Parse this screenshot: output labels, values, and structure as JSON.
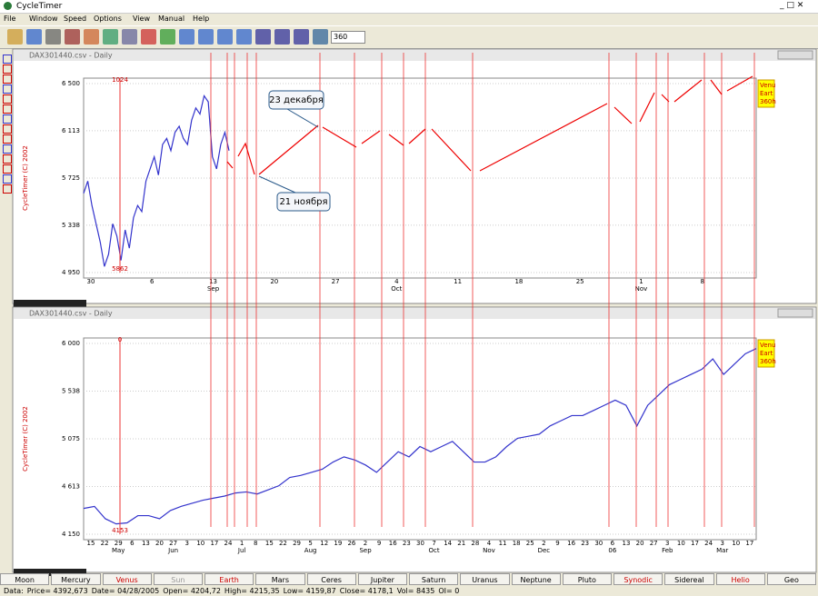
{
  "app_title": "CycleTimer",
  "menu": [
    "File",
    "Window",
    "Speed",
    "Options",
    "View",
    "Manual",
    "Help"
  ],
  "toolbar_field": "360",
  "top_window": {
    "title": "DAX301440.csv - Daily",
    "copyright": "CycleTimer (C) 2002",
    "marker_top": "1024",
    "marker_bottom": "5862",
    "callouts": [
      "23 декабря",
      "21 ноября"
    ],
    "side_label": [
      "Venu",
      "Eart",
      "360h"
    ],
    "ylim": [
      4950,
      6500
    ],
    "yticks": [
      {
        "value": 6500,
        "label": "6 500"
      },
      {
        "value": 6113,
        "label": "6 113"
      },
      {
        "value": 5725,
        "label": "5 725"
      },
      {
        "value": 5338,
        "label": "5 338"
      },
      {
        "value": 4950,
        "label": "4 950"
      }
    ],
    "x_labels": [
      {
        "day": "30"
      },
      {
        "day": "6"
      },
      {
        "day": "13",
        "month": "Sep"
      },
      {
        "day": "20"
      },
      {
        "day": "27"
      },
      {
        "day": "4",
        "month": "Oct"
      },
      {
        "day": "11"
      },
      {
        "day": "18"
      },
      {
        "day": "25"
      },
      {
        "day": "1",
        "month": "Nov"
      },
      {
        "day": "8"
      }
    ],
    "color": "#3333cc",
    "values": [
      5600,
      5700,
      5500,
      5350,
      5200,
      5000,
      5100,
      5350,
      5250,
      5050,
      5300,
      5150,
      5400,
      5500,
      5450,
      5700,
      5800,
      5900,
      5750,
      6000,
      6050,
      5950,
      6100,
      6150,
      6050,
      6000,
      6200,
      6300,
      6250,
      6400,
      6350,
      5900,
      5800,
      6000,
      6100,
      5950
    ]
  },
  "bottom_window": {
    "title": "DAX301440.csv - Daily",
    "copyright": "CycleTimer (C) 2002",
    "marker_top": "0",
    "marker_bottom": "4153",
    "side_label": [
      "Venu",
      "Eart",
      "360h"
    ],
    "ylim": [
      4150,
      6000
    ],
    "yticks": [
      {
        "value": 6000,
        "label": "6 000"
      },
      {
        "value": 5538,
        "label": "5 538"
      },
      {
        "value": 5075,
        "label": "5 075"
      },
      {
        "value": 4613,
        "label": "4 613"
      },
      {
        "value": 4150,
        "label": "4 150"
      }
    ],
    "x_labels": [
      {
        "day": "15"
      },
      {
        "day": "22"
      },
      {
        "day": "29",
        "month": "May"
      },
      {
        "day": "6"
      },
      {
        "day": "13"
      },
      {
        "day": "20"
      },
      {
        "day": "27",
        "month": "Jun"
      },
      {
        "day": "3"
      },
      {
        "day": "10"
      },
      {
        "day": "17"
      },
      {
        "day": "24"
      },
      {
        "day": "1",
        "month": "Jul"
      },
      {
        "day": "8"
      },
      {
        "day": "15"
      },
      {
        "day": "22"
      },
      {
        "day": "29"
      },
      {
        "day": "5",
        "month": "Aug"
      },
      {
        "day": "12"
      },
      {
        "day": "19"
      },
      {
        "day": "26"
      },
      {
        "day": "2",
        "month": "Sep"
      },
      {
        "day": "9"
      },
      {
        "day": "16"
      },
      {
        "day": "23"
      },
      {
        "day": "30"
      },
      {
        "day": "7",
        "month": "Oct"
      },
      {
        "day": "14"
      },
      {
        "day": "21"
      },
      {
        "day": "28"
      },
      {
        "day": "4",
        "month": "Nov"
      },
      {
        "day": "11"
      },
      {
        "day": "18"
      },
      {
        "day": "25"
      },
      {
        "day": "2",
        "month": "Dec"
      },
      {
        "day": "9"
      },
      {
        "day": "16"
      },
      {
        "day": "23"
      },
      {
        "day": "30"
      },
      {
        "day": "6",
        "month": "06"
      },
      {
        "day": "13"
      },
      {
        "day": "20"
      },
      {
        "day": "27"
      },
      {
        "day": "3",
        "month": "Feb"
      },
      {
        "day": "10"
      },
      {
        "day": "17"
      },
      {
        "day": "24"
      },
      {
        "day": "3",
        "month": "Mar"
      },
      {
        "day": "10"
      },
      {
        "day": "17"
      }
    ],
    "color": "#3333cc",
    "values": [
      4400,
      4420,
      4300,
      4250,
      4260,
      4330,
      4330,
      4300,
      4380,
      4420,
      4450,
      4480,
      4500,
      4520,
      4550,
      4560,
      4540,
      4580,
      4620,
      4700,
      4720,
      4750,
      4780,
      4850,
      4900,
      4870,
      4820,
      4750,
      4850,
      4950,
      4900,
      5000,
      4950,
      5000,
      5050,
      4950,
      4850,
      4850,
      4900,
      5000,
      5080,
      5100,
      5120,
      5200,
      5250,
      5300,
      5300,
      5350,
      5400,
      5450,
      5400,
      5200,
      5400,
      5500,
      5600,
      5650,
      5700,
      5750,
      5850,
      5700,
      5800,
      5900,
      5950
    ]
  },
  "buttons": [
    {
      "label": "Moon",
      "color": "#000"
    },
    {
      "label": "Mercury",
      "color": "#000"
    },
    {
      "label": "Venus",
      "color": "#cc0000"
    },
    {
      "label": "Sun",
      "color": "#999"
    },
    {
      "label": "Earth",
      "color": "#cc0000"
    },
    {
      "label": "Mars",
      "color": "#000"
    },
    {
      "label": "Ceres",
      "color": "#000"
    },
    {
      "label": "Jupiter",
      "color": "#000"
    },
    {
      "label": "Saturn",
      "color": "#000"
    },
    {
      "label": "Uranus",
      "color": "#000"
    },
    {
      "label": "Neptune",
      "color": "#000"
    },
    {
      "label": "Pluto",
      "color": "#000"
    },
    {
      "label": "Synodic",
      "color": "#cc0000"
    },
    {
      "label": "Sidereal",
      "color": "#000"
    },
    {
      "label": "Helio",
      "color": "#cc0000"
    },
    {
      "label": "Geo",
      "color": "#000"
    }
  ],
  "status": [
    "Data:",
    "Price= 4392,673",
    "Date= 04/28/2005",
    "Open= 4204,72",
    "High= 4215,35",
    "Low= 4159,87",
    "Close= 4178,1",
    "Vol= 8435",
    "OI= 0"
  ]
}
